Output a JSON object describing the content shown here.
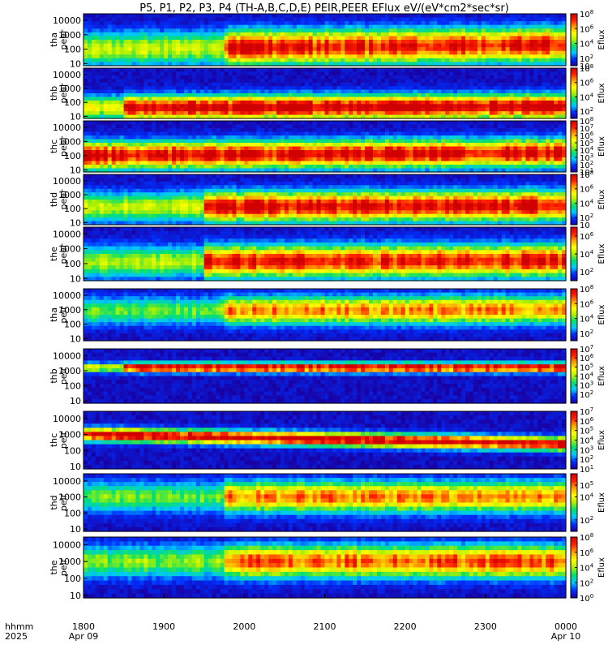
{
  "chart_data": {
    "type": "heatmap",
    "title": "P5, P1, P2, P3, P4 (TH-A,B,C,D,E) PEIR,PEER EFlux eV/(eV*cm2*sec*sr)",
    "x_axis": {
      "row_label_1": "hhmm",
      "row_label_2": "2025",
      "ticks": [
        "1800",
        "1900",
        "2000",
        "2100",
        "2200",
        "2300",
        "0000"
      ],
      "date_labels": [
        {
          "at": "1800",
          "text": "Apr 09"
        },
        {
          "at": "0000",
          "text": "Apr 10"
        }
      ],
      "range": [
        "2025-04-09 18:00",
        "2025-04-10 00:00"
      ]
    },
    "colormap": [
      "#1a00a0",
      "#0030ff",
      "#00c8ff",
      "#00e070",
      "#b0f000",
      "#ffff00",
      "#ffa000",
      "#ff2000",
      "#d00000"
    ],
    "colorbar_label": "Eflux",
    "panels": [
      {
        "probe": "tha",
        "species": "peer",
        "yticks": [
          "10",
          "100",
          "1000",
          "10000"
        ],
        "cbar_ticks": [
          "10",
          "10^2",
          "10^4",
          "10^6",
          "10^8"
        ],
        "cbar_exp_range": [
          1,
          8
        ],
        "spectrum": {
          "peak_log_energy_start": 2.0,
          "peak_log_energy_end": 2.3,
          "width": 1.1,
          "intensity": 0.9,
          "active_from": "1945"
        }
      },
      {
        "probe": "thb",
        "species": "peer",
        "yticks": [
          "10",
          "100",
          "1000",
          "10000"
        ],
        "cbar_ticks": [
          "10^2",
          "10^4",
          "10^6",
          "10^8"
        ],
        "cbar_exp_range": [
          1,
          8
        ],
        "spectrum": {
          "peak_log_energy_start": 1.6,
          "peak_log_energy_end": 1.7,
          "width": 0.8,
          "intensity": 1.0,
          "active_from": "1830"
        }
      },
      {
        "probe": "thc",
        "species": "peer",
        "yticks": [
          "10",
          "100",
          "1000",
          "10000"
        ],
        "cbar_ticks": [
          "10^1",
          "10^2",
          "10^3",
          "10^4",
          "10^5",
          "10^6",
          "10^7",
          "10^8"
        ],
        "cbar_exp_range": [
          1,
          8
        ],
        "spectrum": {
          "peak_log_energy_start": 2.0,
          "peak_log_energy_end": 2.2,
          "width": 0.9,
          "intensity": 0.95,
          "active_from": "1800"
        }
      },
      {
        "probe": "thd",
        "species": "peer",
        "yticks": [
          "10",
          "100",
          "1000",
          "10000"
        ],
        "cbar_ticks": [
          "10",
          "10^2",
          "10^4",
          "10^6",
          "10^8"
        ],
        "cbar_exp_range": [
          1,
          8
        ],
        "spectrum": {
          "peak_log_energy_start": 2.1,
          "peak_log_energy_end": 2.2,
          "width": 1.0,
          "intensity": 0.95,
          "active_from": "1930"
        }
      },
      {
        "probe": "the",
        "species": "peer",
        "yticks": [
          "10",
          "100",
          "1000",
          "10000"
        ],
        "cbar_ticks": [
          "10^2",
          "10^4",
          "10^6"
        ],
        "cbar_exp_range": [
          1,
          7
        ],
        "spectrum": {
          "peak_log_energy_start": 2.1,
          "peak_log_energy_end": 2.2,
          "width": 1.0,
          "intensity": 0.9,
          "active_from": "1930"
        }
      },
      {
        "probe": "tha",
        "species": "peir",
        "yticks": [
          "10",
          "100",
          "1000",
          "10000"
        ],
        "cbar_ticks": [
          "10^2",
          "10^4",
          "10^6",
          "10^8"
        ],
        "cbar_exp_range": [
          1,
          8
        ],
        "spectrum": {
          "peak_log_energy_start": 2.9,
          "peak_log_energy_end": 3.0,
          "width": 0.9,
          "intensity": 0.75,
          "active_from": "1945"
        }
      },
      {
        "probe": "thb",
        "species": "peir",
        "yticks": [
          "10",
          "100",
          "1000",
          "10000"
        ],
        "cbar_ticks": [
          "10^2",
          "10^3",
          "10^4",
          "10^5",
          "10^6",
          "10^7"
        ],
        "cbar_exp_range": [
          1,
          7
        ],
        "spectrum": {
          "peak_log_energy_start": 3.2,
          "peak_log_energy_end": 3.2,
          "width": 0.3,
          "intensity": 1.0,
          "active_from": "1830"
        }
      },
      {
        "probe": "thc",
        "species": "peir",
        "yticks": [
          "10",
          "100",
          "1000",
          "10000"
        ],
        "cbar_ticks": [
          "10^1",
          "10^2",
          "10^3",
          "10^4",
          "10^5",
          "10^6",
          "10^7"
        ],
        "cbar_exp_range": [
          1,
          7
        ],
        "spectrum": {
          "peak_log_energy_start": 3.0,
          "peak_log_energy_end": 2.4,
          "width": 0.4,
          "intensity": 1.0,
          "active_from": "1800"
        }
      },
      {
        "probe": "thd",
        "species": "peir",
        "yticks": [
          "10",
          "100",
          "1000",
          "10000"
        ],
        "cbar_ticks": [
          "10^2",
          "10^4",
          "10^5"
        ],
        "cbar_exp_range": [
          1,
          6
        ],
        "spectrum": {
          "peak_log_energy_start": 3.0,
          "peak_log_energy_end": 3.0,
          "width": 0.9,
          "intensity": 0.75,
          "active_from": "1945"
        }
      },
      {
        "probe": "the",
        "species": "peir",
        "yticks": [
          "10",
          "100",
          "1000",
          "10000"
        ],
        "cbar_ticks": [
          "10^0",
          "10^2",
          "10^4",
          "10^6",
          "10^8"
        ],
        "cbar_exp_range": [
          0,
          8
        ],
        "spectrum": {
          "peak_log_energy_start": 3.0,
          "peak_log_energy_end": 3.0,
          "width": 0.9,
          "intensity": 0.8,
          "active_from": "1945"
        }
      }
    ]
  }
}
